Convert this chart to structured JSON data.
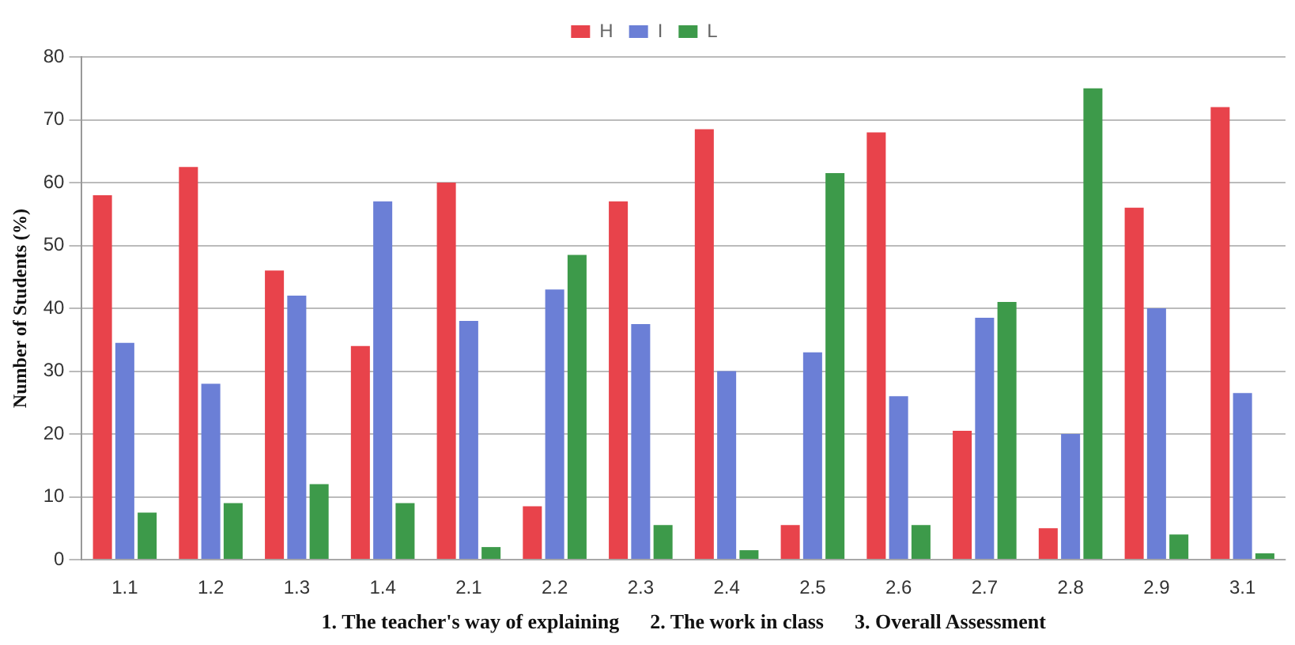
{
  "chart_data": {
    "type": "bar",
    "ylabel": "Number of Students (%)",
    "xlabel": "1. The teacher's way of explaining      2. The work in class      3. Overall Assessment",
    "categories": [
      "1.1",
      "1.2",
      "1.3",
      "1.4",
      "2.1",
      "2.2",
      "2.3",
      "2.4",
      "2.5",
      "2.6",
      "2.7",
      "2.8",
      "2.9",
      "3.1"
    ],
    "series": [
      {
        "name": "H",
        "color": "#e8434b",
        "values": [
          58,
          62.5,
          46,
          34,
          60,
          8.5,
          57,
          68.5,
          5.5,
          68,
          20.5,
          5,
          56,
          72
        ]
      },
      {
        "name": "I",
        "color": "#6b7fd6",
        "values": [
          34.5,
          28,
          42,
          57,
          38,
          43,
          37.5,
          30,
          33,
          26,
          38.5,
          20,
          40,
          26.5
        ]
      },
      {
        "name": "L",
        "color": "#3d9a4a",
        "values": [
          7.5,
          9,
          12,
          9,
          2,
          48.5,
          5.5,
          1.5,
          61.5,
          5.5,
          41,
          75,
          4,
          1
        ]
      }
    ],
    "ylim": [
      0,
      80
    ],
    "yticks": [
      0,
      10,
      20,
      30,
      40,
      50,
      60,
      70,
      80
    ],
    "grid": "y",
    "legend": "top"
  }
}
